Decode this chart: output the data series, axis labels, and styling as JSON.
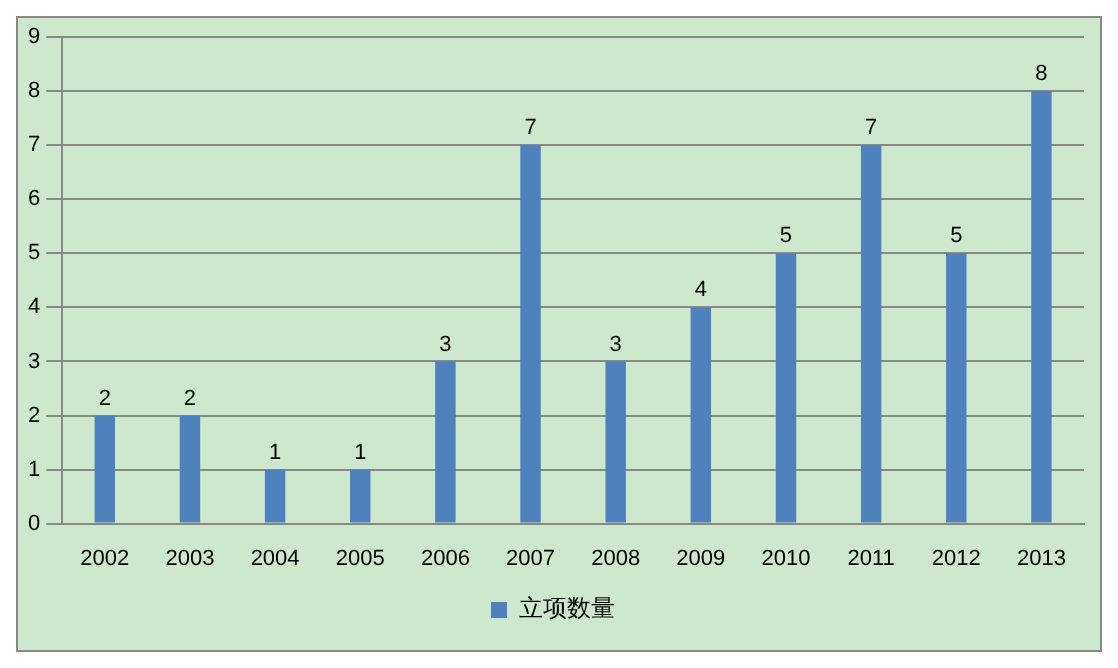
{
  "chart_data": {
    "type": "bar",
    "categories": [
      "2002",
      "2003",
      "2004",
      "2005",
      "2006",
      "2007",
      "2008",
      "2009",
      "2010",
      "2011",
      "2012",
      "2013"
    ],
    "series": [
      {
        "name": "立项数量",
        "color": "#4f81bd",
        "values": [
          2,
          2,
          1,
          1,
          3,
          7,
          3,
          4,
          5,
          7,
          5,
          8
        ]
      }
    ],
    "ylim": [
      0,
      9
    ],
    "yticks": [
      0,
      1,
      2,
      3,
      4,
      5,
      6,
      7,
      8,
      9
    ],
    "grid": "y",
    "legend": "bottom",
    "data_labels": true
  }
}
